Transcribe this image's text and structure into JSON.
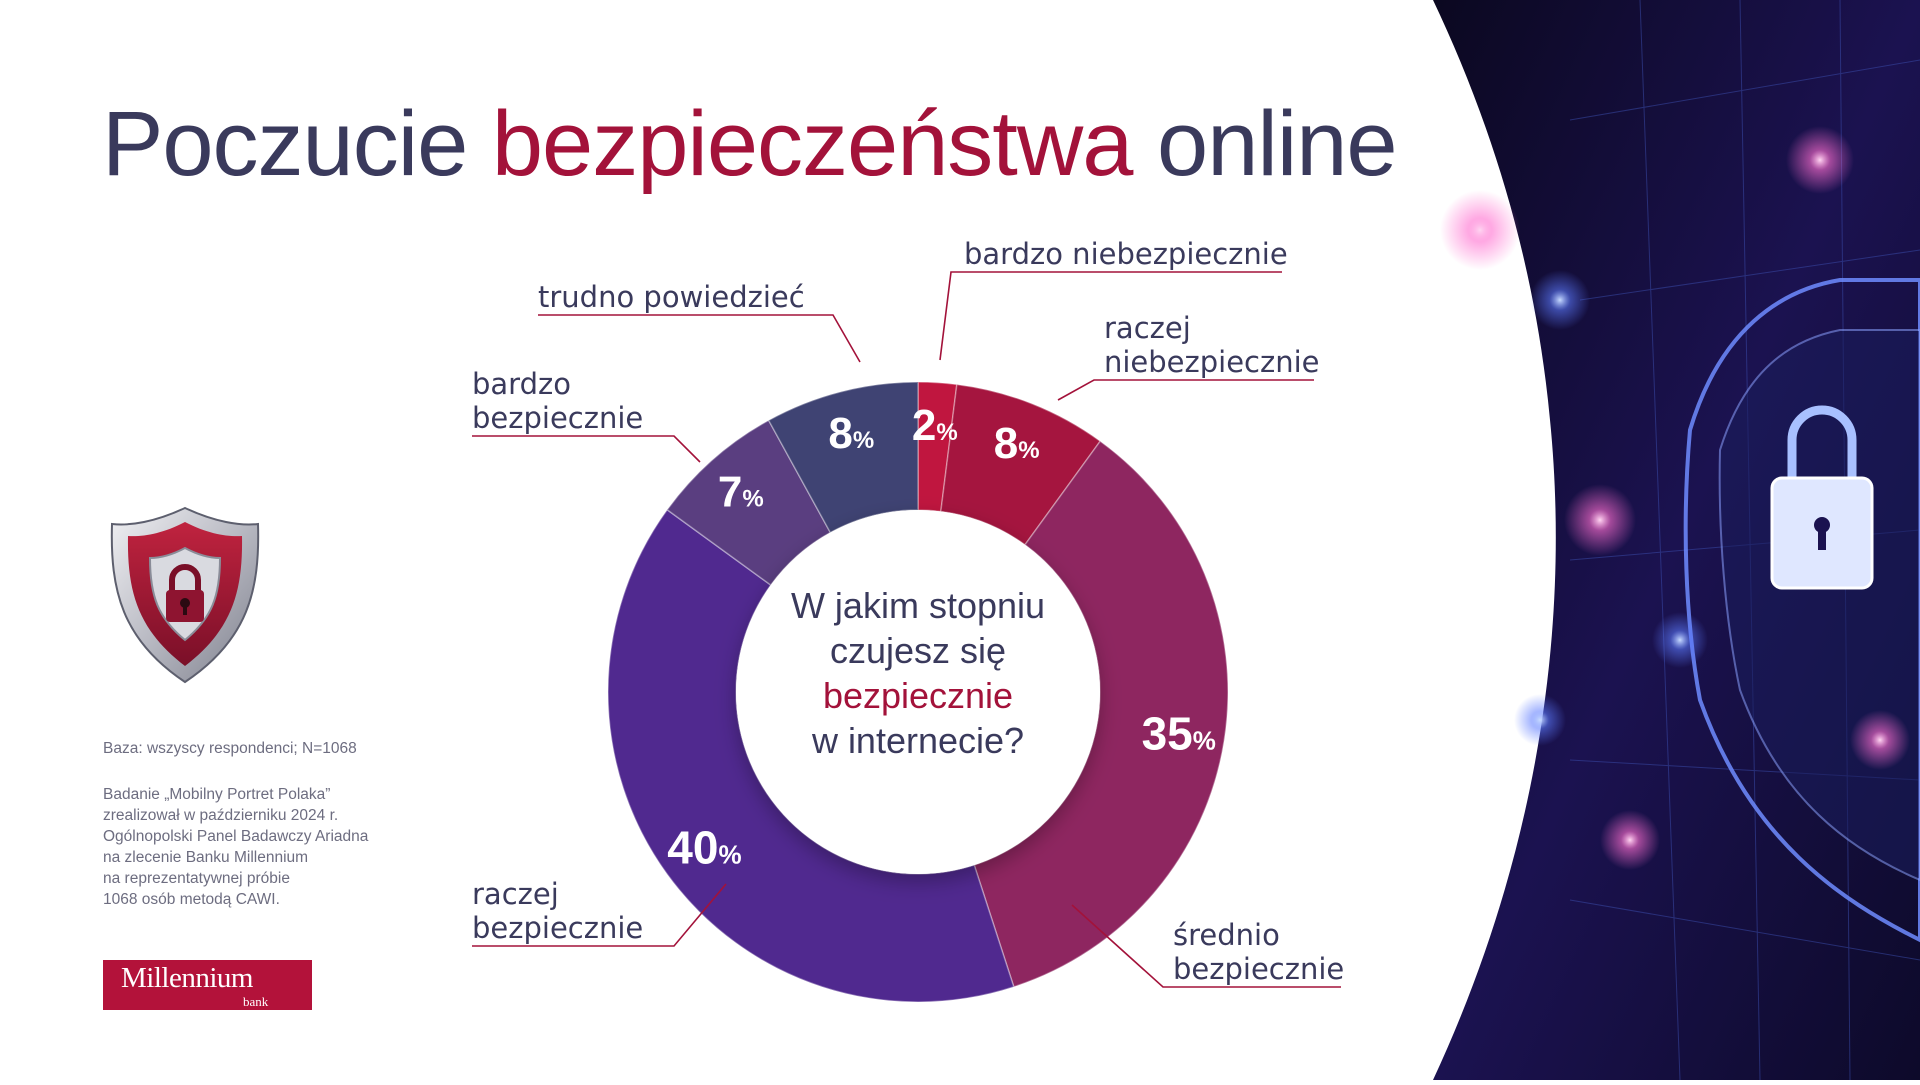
{
  "title": {
    "part1": "Poczucie ",
    "accent": "bezpieczeństwa",
    "part2": " online"
  },
  "center_question": {
    "line1": "W jakim stopniu",
    "line2": "czujesz się",
    "line3": "bezpiecznie",
    "line4": "w internecie?"
  },
  "notes": {
    "base": "Baza: wszyscy respondenci; N=1068",
    "study_lines": [
      "Badanie „Mobilny Portret Polaka”",
      "zrealizował w październiku 2024 r.",
      "Ogólnopolski Panel Badawczy Ariadna",
      "na zlecenie Banku Millennium",
      "na reprezentatywnej próbie",
      "1068 osób metodą CAWI."
    ]
  },
  "logo": {
    "name": "Millennium",
    "sub": "bank"
  },
  "icons": {
    "left": "shield-lock-icon",
    "right": "digital-shield-lock-icon"
  },
  "colors": {
    "title_accent": "#a3123a",
    "text": "#3a3a5c",
    "brand": "#b3123a"
  },
  "chart_data": {
    "type": "pie",
    "categories": [
      "bardzo niebezpiecznie",
      "raczej niebezpiecznie",
      "średnio bezpiecznie",
      "raczej bezpiecznie",
      "bardzo bezpiecznie",
      "trudno powiedzieć"
    ],
    "values": [
      2,
      8,
      35,
      40,
      7,
      8
    ],
    "value_labels": [
      "2",
      "8",
      "35",
      "40",
      "7",
      "8"
    ],
    "unit": "%",
    "colors": [
      "#c0163f",
      "#a5153f",
      "#8e2660",
      "#50298f",
      "#5a3e80",
      "#3f4373"
    ],
    "donut": true
  }
}
